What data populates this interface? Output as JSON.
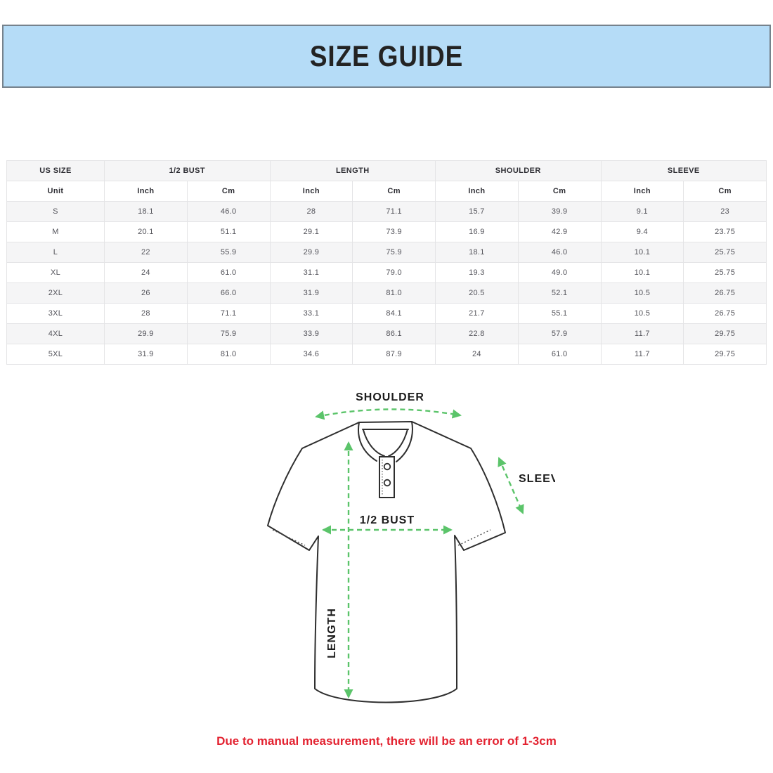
{
  "title": "SIZE GUIDE",
  "table": {
    "group_headers": [
      {
        "label": "US SIZE",
        "span": 1
      },
      {
        "label": "1/2 BUST",
        "span": 2
      },
      {
        "label": "LENGTH",
        "span": 2
      },
      {
        "label": "SHOULDER",
        "span": 2
      },
      {
        "label": "SLEEVE",
        "span": 2
      }
    ],
    "unit_row": [
      "Unit",
      "Inch",
      "Cm",
      "Inch",
      "Cm",
      "Inch",
      "Cm",
      "Inch",
      "Cm"
    ],
    "rows": [
      {
        "size": "S",
        "values": [
          "18.1",
          "46.0",
          "28",
          "71.1",
          "15.7",
          "39.9",
          "9.1",
          "23"
        ]
      },
      {
        "size": "M",
        "values": [
          "20.1",
          "51.1",
          "29.1",
          "73.9",
          "16.9",
          "42.9",
          "9.4",
          "23.75"
        ]
      },
      {
        "size": "L",
        "values": [
          "22",
          "55.9",
          "29.9",
          "75.9",
          "18.1",
          "46.0",
          "10.1",
          "25.75"
        ]
      },
      {
        "size": "XL",
        "values": [
          "24",
          "61.0",
          "31.1",
          "79.0",
          "19.3",
          "49.0",
          "10.1",
          "25.75"
        ]
      },
      {
        "size": "2XL",
        "values": [
          "26",
          "66.0",
          "31.9",
          "81.0",
          "20.5",
          "52.1",
          "10.5",
          "26.75"
        ]
      },
      {
        "size": "3XL",
        "values": [
          "28",
          "71.1",
          "33.1",
          "84.1",
          "21.7",
          "55.1",
          "10.5",
          "26.75"
        ]
      },
      {
        "size": "4XL",
        "values": [
          "29.9",
          "75.9",
          "33.9",
          "86.1",
          "22.8",
          "57.9",
          "11.7",
          "29.75"
        ]
      },
      {
        "size": "5XL",
        "values": [
          "31.9",
          "81.0",
          "34.6",
          "87.9",
          "24",
          "61.0",
          "11.7",
          "29.75"
        ]
      }
    ]
  },
  "diagram": {
    "labels": {
      "shoulder": "SHOULDER",
      "sleeve": "SLEEVE",
      "bust": "1/2 BUST",
      "length": "LENGTH"
    }
  },
  "note": "Due to manual measurement, there will be an error of 1-3cm",
  "colors": {
    "banner_background": "#b5dcf7",
    "banner_border": "#76828c",
    "arrow_green": "#5bc46a",
    "note_red": "#e32230",
    "row_stripe": "#f5f5f6",
    "shirt_outline": "#2e2e2e"
  }
}
